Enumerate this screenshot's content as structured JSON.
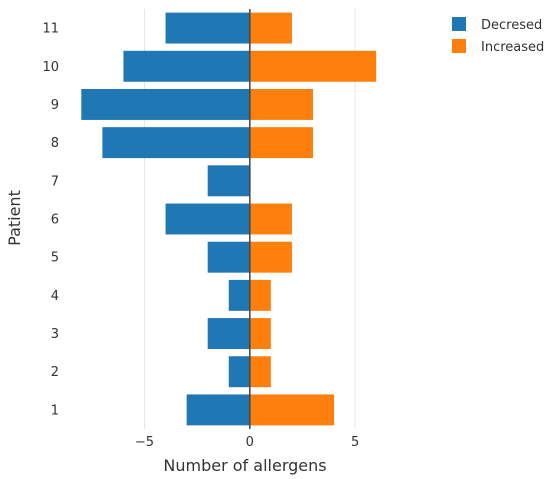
{
  "chart_data": {
    "type": "bar",
    "orientation": "horizontal",
    "barmode": "relative",
    "xlabel": "Number of allergens",
    "ylabel": "Patient",
    "categories": [
      "1",
      "2",
      "3",
      "4",
      "5",
      "6",
      "7",
      "8",
      "9",
      "10",
      "11"
    ],
    "series": [
      {
        "name": "Decresed",
        "color": "#1f77b4",
        "values": [
          -3,
          -1,
          -2,
          -1,
          -2,
          -4,
          -2,
          -7,
          -8,
          -6,
          -4
        ]
      },
      {
        "name": "Increased",
        "color": "#ff7f0e",
        "values": [
          4,
          1,
          1,
          1,
          2,
          2,
          0,
          3,
          3,
          6,
          2
        ]
      }
    ],
    "xlim": [
      -8.3,
      7.7
    ],
    "xticks": [
      {
        "value": -5,
        "label": "−5"
      },
      {
        "value": 0,
        "label": "0"
      },
      {
        "value": 5,
        "label": "5"
      }
    ],
    "grid": true,
    "zero_line": true,
    "legend_position": "top-right"
  }
}
